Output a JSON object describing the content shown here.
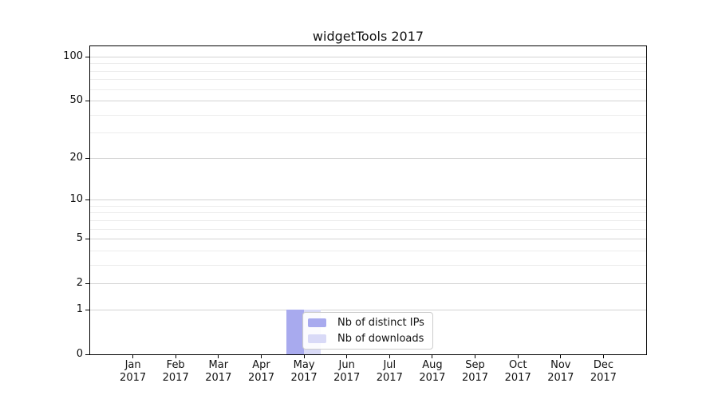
{
  "chart_data": {
    "type": "bar",
    "title": "widgetTools 2017",
    "categories": [
      "Jan",
      "Feb",
      "Mar",
      "Apr",
      "May",
      "Jun",
      "Jul",
      "Aug",
      "Sep",
      "Oct",
      "Nov",
      "Dec"
    ],
    "x_tick_second_line": "2017",
    "series": [
      {
        "name": "Nb of distinct IPs",
        "color": "#a8aaee",
        "values": [
          0,
          0,
          0,
          0,
          1,
          0,
          0,
          0,
          0,
          0,
          0,
          0
        ]
      },
      {
        "name": "Nb of downloads",
        "color": "#d9daf7",
        "values": [
          0,
          0,
          0,
          0,
          1,
          0,
          0,
          0,
          0,
          0,
          0,
          0
        ]
      }
    ],
    "xlabel": "",
    "ylabel": "",
    "y_axis": {
      "scale": "log1p",
      "tick_values": [
        100,
        50,
        20,
        10,
        5,
        2,
        1,
        0
      ],
      "tick_labels": [
        "100",
        "50",
        "20",
        "10",
        "5",
        "2",
        "1",
        "0"
      ],
      "minor_gridline_values": [
        3,
        4,
        6,
        7,
        8,
        9,
        30,
        40,
        60,
        70,
        80,
        90
      ],
      "ylim": [
        0,
        113
      ]
    },
    "grid": true,
    "legend": {
      "position": "inside-bottom-center-overlay",
      "items": [
        "Nb of distinct IPs",
        "Nb of downloads"
      ]
    }
  },
  "colors": {
    "background": "#ffffff",
    "axis": "#000000",
    "text": "#111111",
    "grid_major": "#d3d3d3",
    "grid_minor": "#ececec",
    "legend_border": "#cccccc",
    "legend_background": "rgba(255,255,255,0.88)"
  }
}
